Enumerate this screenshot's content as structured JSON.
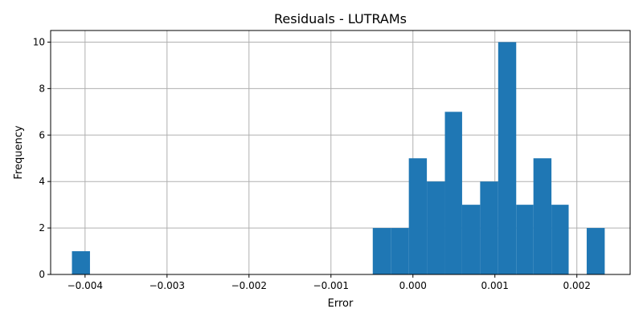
{
  "chart_data": {
    "type": "bar",
    "title": "Residuals - LUTRAMs",
    "xlabel": "Error",
    "ylabel": "Frequency",
    "xlim": [
      -0.00442,
      0.00265
    ],
    "ylim": [
      0,
      10.5
    ],
    "xticks": [
      -0.004,
      -0.003,
      -0.002,
      -0.001,
      0.0,
      0.001,
      0.002
    ],
    "xtick_labels": [
      "−0.004",
      "−0.003",
      "−0.002",
      "−0.001",
      "0.000",
      "0.001",
      "0.002"
    ],
    "yticks": [
      0,
      2,
      4,
      6,
      8,
      10
    ],
    "ytick_labels": [
      "0",
      "2",
      "4",
      "6",
      "8",
      "10"
    ],
    "grid": true,
    "bar_color": "#1f77b4",
    "bins": [
      {
        "start": -0.00416,
        "end": -0.00394,
        "count": 1
      },
      {
        "start": -0.00049,
        "end": -0.00027,
        "count": 2
      },
      {
        "start": -0.00027,
        "end": -5e-05,
        "count": 2
      },
      {
        "start": -5e-05,
        "end": 0.00017,
        "count": 5
      },
      {
        "start": 0.00017,
        "end": 0.00039,
        "count": 4
      },
      {
        "start": 0.00039,
        "end": 0.0006,
        "count": 7
      },
      {
        "start": 0.0006,
        "end": 0.00082,
        "count": 3
      },
      {
        "start": 0.00082,
        "end": 0.00104,
        "count": 4
      },
      {
        "start": 0.00104,
        "end": 0.00126,
        "count": 10
      },
      {
        "start": 0.00126,
        "end": 0.00147,
        "count": 3
      },
      {
        "start": 0.00147,
        "end": 0.00169,
        "count": 5
      },
      {
        "start": 0.00169,
        "end": 0.0019,
        "count": 3
      },
      {
        "start": 0.00212,
        "end": 0.00234,
        "count": 2
      }
    ]
  }
}
